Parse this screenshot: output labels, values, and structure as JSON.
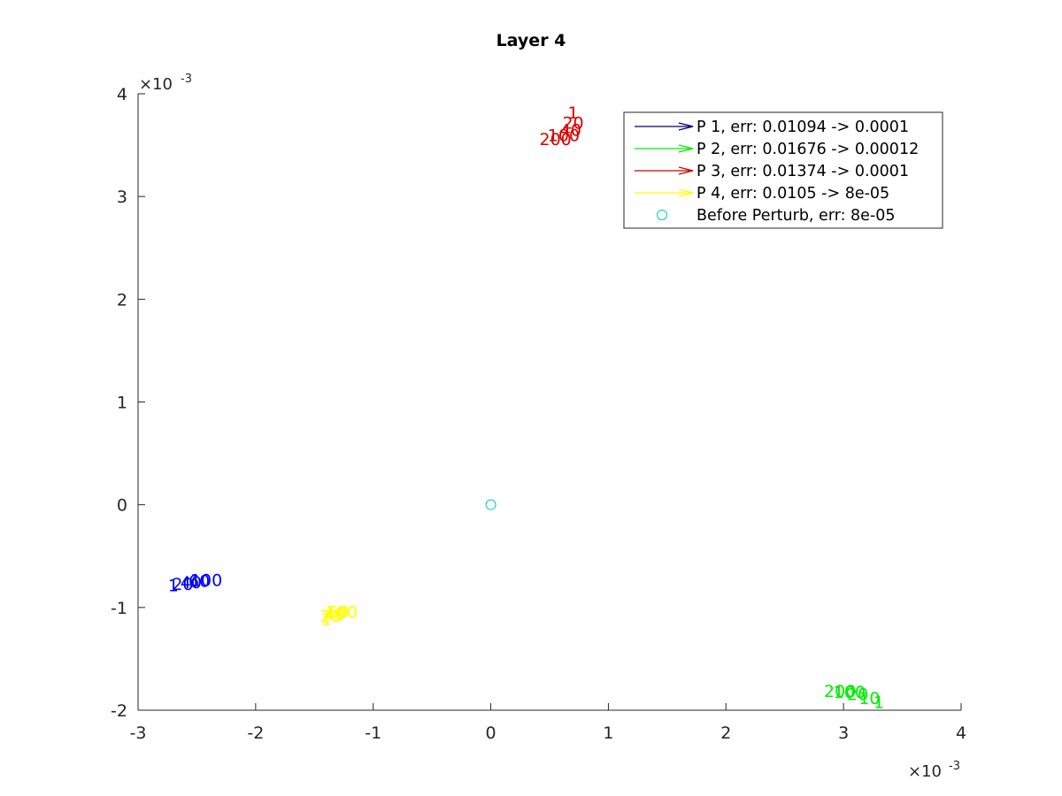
{
  "chart_data": {
    "type": "scatter",
    "title": "Layer 4",
    "xlabel": "",
    "ylabel": "",
    "xlim": [
      -3,
      4
    ],
    "ylim": [
      -2,
      4
    ],
    "x_ticks": [
      "-3",
      "-2",
      "-1",
      "0",
      "1",
      "2",
      "3",
      "4"
    ],
    "y_ticks": [
      "-2",
      "-1",
      "0",
      "1",
      "2",
      "3",
      "4"
    ],
    "x_exponent": {
      "base": "×10",
      "exp": "-3"
    },
    "y_exponent": {
      "base": "×10",
      "exp": "-3"
    },
    "grid": false,
    "legend_position": "top-right",
    "series": [
      {
        "name": "P 1, err: 0.01094 -> 0.0001",
        "color": "#0000ff",
        "legend_line_color": "#00007f",
        "marker": "arrow",
        "points": [
          {
            "x": -2.7,
            "y": -0.78,
            "label": "1"
          },
          {
            "x": -2.62,
            "y": -0.77,
            "label": "20"
          },
          {
            "x": -2.55,
            "y": -0.75,
            "label": "40"
          },
          {
            "x": -2.48,
            "y": -0.74,
            "label": "60"
          },
          {
            "x": -2.42,
            "y": -0.73,
            "label": "100"
          }
        ]
      },
      {
        "name": "P 2, err: 0.01676 -> 0.00012",
        "color": "#00ee00",
        "legend_line_color": "#00ee00",
        "marker": "arrow",
        "points": [
          {
            "x": 3.3,
            "y": -1.92,
            "label": "1"
          },
          {
            "x": 3.22,
            "y": -1.88,
            "label": "10"
          },
          {
            "x": 3.12,
            "y": -1.84,
            "label": "20"
          },
          {
            "x": 3.05,
            "y": -1.82,
            "label": "100"
          },
          {
            "x": 2.97,
            "y": -1.81,
            "label": "200"
          }
        ]
      },
      {
        "name": "P 3, err: 0.01374 -> 0.0001",
        "color": "#dd0000",
        "legend_line_color": "#cc0000",
        "marker": "arrow",
        "points": [
          {
            "x": 0.7,
            "y": 3.82,
            "label": "1"
          },
          {
            "x": 0.7,
            "y": 3.72,
            "label": "20"
          },
          {
            "x": 0.68,
            "y": 3.65,
            "label": "40"
          },
          {
            "x": 0.62,
            "y": 3.6,
            "label": "100"
          },
          {
            "x": 0.55,
            "y": 3.56,
            "label": "200"
          }
        ]
      },
      {
        "name": "P 4, err: 0.0105 -> 8e-05",
        "color": "#ffff00",
        "legend_line_color": "#ffff00",
        "marker": "arrow",
        "points": [
          {
            "x": -1.4,
            "y": -1.11,
            "label": "1"
          },
          {
            "x": -1.36,
            "y": -1.08,
            "label": "20"
          },
          {
            "x": -1.33,
            "y": -1.06,
            "label": "40"
          },
          {
            "x": -1.3,
            "y": -1.04,
            "label": "60"
          },
          {
            "x": -1.27,
            "y": -1.04,
            "label": "100"
          }
        ]
      },
      {
        "name": "Before Perturb, err: 8e-05",
        "color": "#00cccc",
        "marker": "circle",
        "points": [
          {
            "x": 0,
            "y": 0
          }
        ]
      }
    ]
  }
}
